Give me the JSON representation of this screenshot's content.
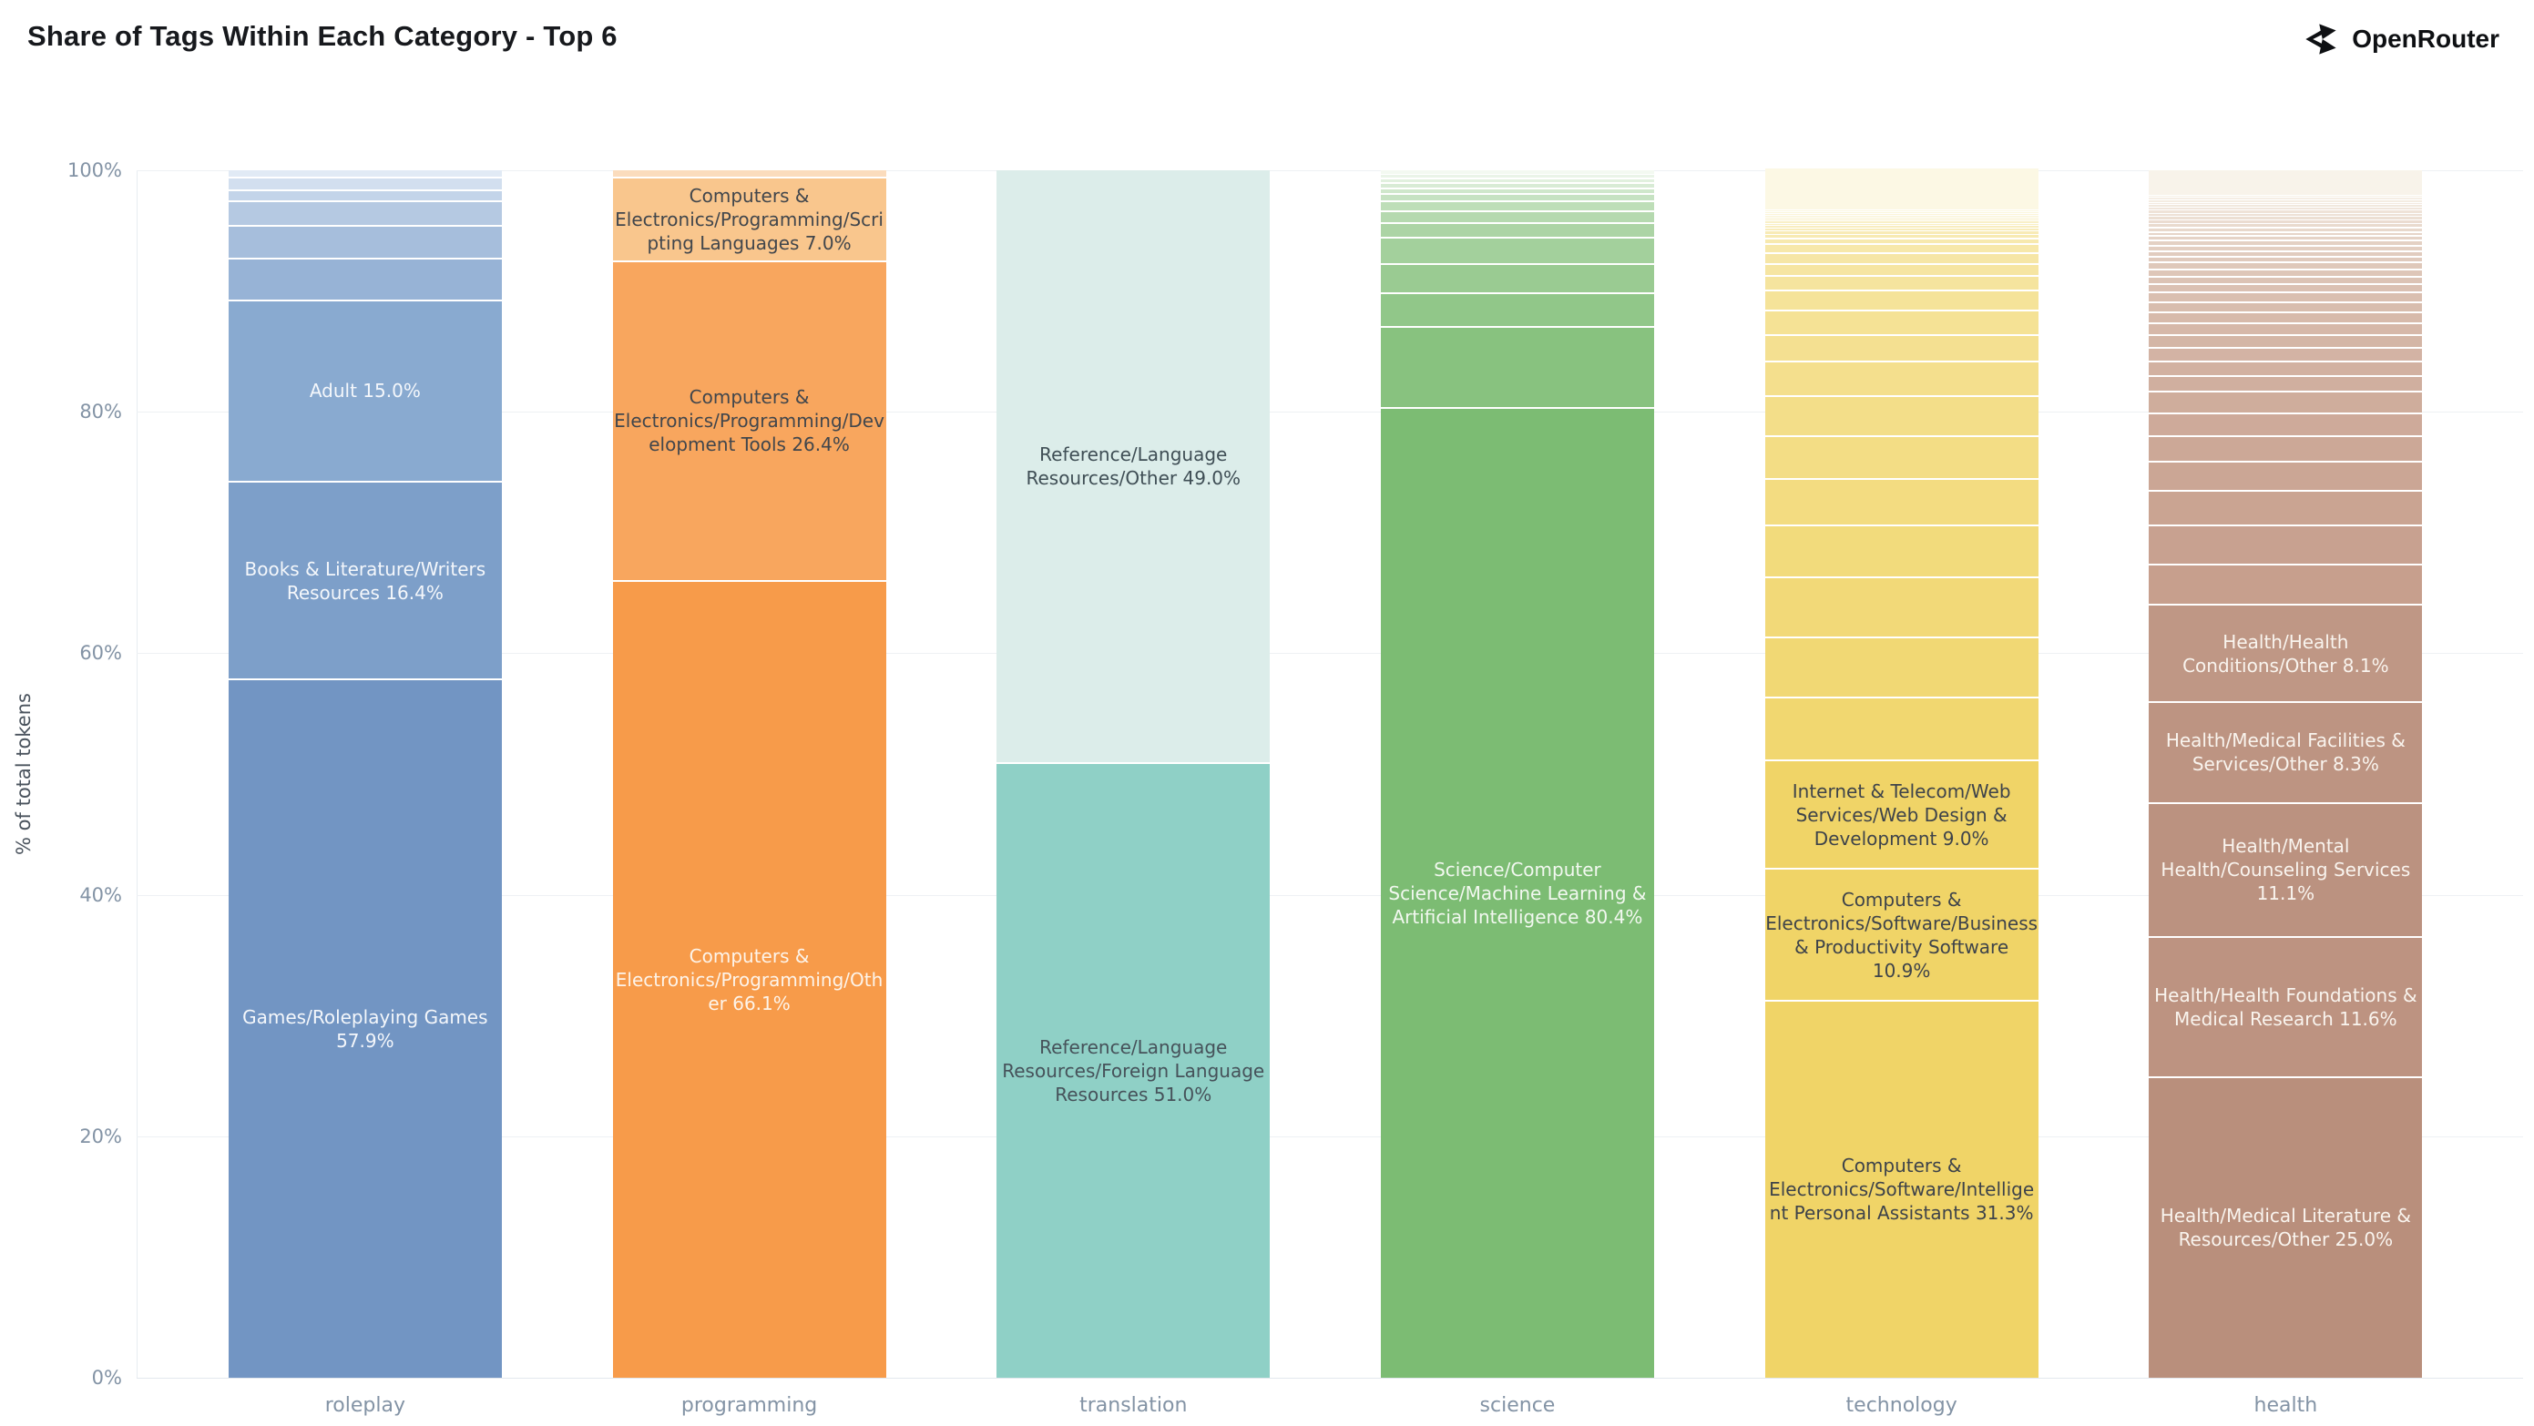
{
  "header": {
    "title": "Share of Tags Within Each Category - Top 6",
    "brand": "OpenRouter"
  },
  "y_axis": {
    "title": "% of total tokens",
    "ticks": [
      {
        "label": "0%",
        "value": 0
      },
      {
        "label": "20%",
        "value": 20
      },
      {
        "label": "40%",
        "value": 40
      },
      {
        "label": "60%",
        "value": 60
      },
      {
        "label": "80%",
        "value": 80
      },
      {
        "label": "100%",
        "value": 100
      }
    ]
  },
  "chart_data": {
    "type": "bar",
    "stacked": true,
    "ylabel": "% of total tokens",
    "ylim": [
      0,
      100
    ],
    "grid": true,
    "categories": [
      "roleplay",
      "programming",
      "translation",
      "science",
      "technology",
      "health"
    ],
    "bars": [
      {
        "category": "roleplay",
        "light": "#e1eaf5",
        "unlabeled_dark": "#97b3d6",
        "segments": [
          {
            "value": 0.5
          },
          {
            "value": 1.1
          },
          {
            "value": 0.9
          },
          {
            "value": 2.0
          },
          {
            "value": 2.7
          },
          {
            "value": 3.5
          },
          {
            "value": 15.0,
            "label": "Adult 15.0%",
            "color": "#89aad0",
            "text": "#f4f7fb"
          },
          {
            "value": 16.4,
            "label": "Books & Literature/Writers Resources 16.4%",
            "color": "#7d9fc9",
            "text": "#f4f7fb"
          },
          {
            "value": 57.9,
            "label": "Games/Roleplaying Games 57.9%",
            "color": "#7295c3",
            "text": "#f4f7fb"
          }
        ]
      },
      {
        "category": "programming",
        "light": "#fbdcbd",
        "unlabeled_dark": "#fbd0a4",
        "segments": [
          {
            "value": 0.5
          },
          {
            "value": 7.0,
            "label": "Computers & Electronics/Programming/Scripting Languages 7.0%",
            "color": "#f9c68d",
            "text": "#41464c"
          },
          {
            "value": 26.4,
            "label": "Computers & Electronics/Programming/Development Tools 26.4%",
            "color": "#f8a65e",
            "text": "#41464c"
          },
          {
            "value": 66.1,
            "label": "Computers & Electronics/Programming/Other 66.1%",
            "color": "#f79b4a",
            "text": "#fdf4ea"
          }
        ]
      },
      {
        "category": "translation",
        "light": "#e4f1ef",
        "unlabeled_dark": "#c8e4e0",
        "segments": [
          {
            "value": 49.0,
            "label": "Reference/Language Resources/Other 49.0%",
            "color": "#dcedea",
            "text": "#3f4e55"
          },
          {
            "value": 51.0,
            "label": "Reference/Language Resources/Foreign Language Resources 51.0%",
            "color": "#8fd0c6",
            "text": "#46525a"
          }
        ]
      },
      {
        "category": "science",
        "light": "#f3f9f1",
        "unlabeled_dark": "#88c27f",
        "segments": [
          {
            "value": 0.3
          },
          {
            "value": 0.3
          },
          {
            "value": 0.4
          },
          {
            "value": 0.4
          },
          {
            "value": 0.5
          },
          {
            "value": 0.6
          },
          {
            "value": 0.8
          },
          {
            "value": 1.0
          },
          {
            "value": 1.2
          },
          {
            "value": 2.2
          },
          {
            "value": 2.4
          },
          {
            "value": 2.8
          },
          {
            "value": 6.7
          },
          {
            "value": 80.4,
            "label": "Science/Computer Science/Machine Learning & Artificial Intelligence 80.4%",
            "color": "#7cbc73",
            "text": "#f2f8f0"
          }
        ]
      },
      {
        "category": "technology",
        "light": "#fcf8e4",
        "unlabeled_dark": "#f1d770",
        "segments": [
          {
            "value": 3.4
          },
          {
            "value": 0.1
          },
          {
            "value": 0.1
          },
          {
            "value": 0.1
          },
          {
            "value": 0.15
          },
          {
            "value": 0.15
          },
          {
            "value": 0.15
          },
          {
            "value": 0.2
          },
          {
            "value": 0.2
          },
          {
            "value": 0.2
          },
          {
            "value": 0.25
          },
          {
            "value": 0.25
          },
          {
            "value": 0.3
          },
          {
            "value": 0.5
          },
          {
            "value": 0.7
          },
          {
            "value": 0.9
          },
          {
            "value": 1.0
          },
          {
            "value": 1.2
          },
          {
            "value": 1.7
          },
          {
            "value": 2.0
          },
          {
            "value": 2.2
          },
          {
            "value": 2.9
          },
          {
            "value": 3.3
          },
          {
            "value": 3.5
          },
          {
            "value": 3.9
          },
          {
            "value": 4.3
          },
          {
            "value": 4.95
          },
          {
            "value": 5.0
          },
          {
            "value": 5.2
          },
          {
            "value": 9.0,
            "label": "Internet & Telecom/Web Services/Web Design & Development 9.0%",
            "color": "#f0d467",
            "text": "#3e434a"
          },
          {
            "value": 10.9,
            "label": "Computers & Electronics/Software/Business & Productivity Software 10.9%",
            "color": "#f0d467",
            "text": "#3e434a"
          },
          {
            "value": 31.3,
            "label": "Computers & Electronics/Software/Intelligent Personal Assistants 31.3%",
            "color": "#f0d467",
            "text": "#3e434a"
          }
        ]
      },
      {
        "category": "health",
        "light": "#f8f3ea",
        "unlabeled_dark": "#c79f8d",
        "segments": [
          {
            "value": 2.0
          },
          {
            "value": 0.2
          },
          {
            "value": 0.2
          },
          {
            "value": 0.2
          },
          {
            "value": 0.2
          },
          {
            "value": 0.2
          },
          {
            "value": 0.25
          },
          {
            "value": 0.25
          },
          {
            "value": 0.25
          },
          {
            "value": 0.3
          },
          {
            "value": 0.3
          },
          {
            "value": 0.3
          },
          {
            "value": 0.35
          },
          {
            "value": 0.35
          },
          {
            "value": 0.4
          },
          {
            "value": 0.4
          },
          {
            "value": 0.45
          },
          {
            "value": 0.45
          },
          {
            "value": 0.5
          },
          {
            "value": 0.55
          },
          {
            "value": 0.6
          },
          {
            "value": 0.65
          },
          {
            "value": 0.7
          },
          {
            "value": 0.8
          },
          {
            "value": 0.85
          },
          {
            "value": 0.9
          },
          {
            "value": 1.0
          },
          {
            "value": 1.05
          },
          {
            "value": 1.1
          },
          {
            "value": 1.2
          },
          {
            "value": 1.3
          },
          {
            "value": 1.8
          },
          {
            "value": 1.9
          },
          {
            "value": 2.1
          },
          {
            "value": 2.4
          },
          {
            "value": 2.9
          },
          {
            "value": 3.2
          },
          {
            "value": 3.35
          },
          {
            "value": 8.1,
            "label": "Health/Health Conditions/Other 8.1%",
            "color": "#bf9785",
            "text": "#f9f4ee"
          },
          {
            "value": 8.3,
            "label": "Health/Medical Facilities & Services/Other 8.3%",
            "color": "#bd9482",
            "text": "#f9f4ee"
          },
          {
            "value": 11.1,
            "label": "Health/Mental Health/Counseling Services 11.1%",
            "color": "#bb9280",
            "text": "#f9f4ee"
          },
          {
            "value": 11.6,
            "label": "Health/Health Foundations & Medical Research 11.6%",
            "color": "#bd9381",
            "text": "#f9f4ee"
          },
          {
            "value": 25.0,
            "label": "Health/Medical Literature & Resources/Other 25.0%",
            "color": "#b98f7c",
            "text": "#f9f4ee"
          }
        ]
      }
    ]
  }
}
